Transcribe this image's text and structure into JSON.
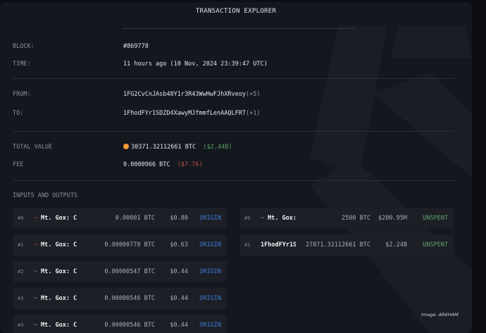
{
  "title": "TRANSACTION EXPLORER",
  "details": {
    "block_label": "BLOCK:",
    "block": "#869778",
    "time_label": "TIME:",
    "time": "11 hours ago  (10 Nov, 2024 23:39:47 UTC)",
    "from_label": "FROM:",
    "from": "1FG2CvCnJAsb48Y1r3R43WwHwFJhXRveoy",
    "from_more": "(+5)",
    "to_label": "TO:",
    "to": "1FhodFYr1SDZD4XawyMJfmmfLenAAQLFRT",
    "to_more": "(+1)",
    "total_label": "TOTAL VALUE",
    "total": "30371.32112661 BTC",
    "total_usd": "($2.44B)",
    "fee_label": "FEE",
    "fee": "0.0000966 BTC",
    "fee_usd": "($7.76)"
  },
  "io_label": "INPUTS AND OUTPUTS",
  "inputs": [
    {
      "idx": "#0",
      "name": "Mt. Gox: C",
      "amount": "0.00001 BTC",
      "usd": "$0.80",
      "status": "ORIGIN"
    },
    {
      "idx": "#1",
      "name": "Mt. Gox: C",
      "amount": "0.00000778 BTC",
      "usd": "$0.63",
      "status": "ORIGIN"
    },
    {
      "idx": "#2",
      "name": "Mt. Gox: C",
      "amount": "0.00000547 BTC",
      "usd": "$0.44",
      "status": "ORIGIN"
    },
    {
      "idx": "#3",
      "name": "Mt. Gox: C",
      "amount": "0.00000546 BTC",
      "usd": "$0.44",
      "status": "ORIGIN"
    },
    {
      "idx": "#4",
      "name": "Mt. Gox: C",
      "amount": "0.00000546 BTC",
      "usd": "$0.44",
      "status": "ORIGIN"
    }
  ],
  "outputs": [
    {
      "idx": "#0",
      "name": "Mt. Gox:",
      "amount": "2500 BTC",
      "usd": "$200.95M",
      "status": "UNSPENT"
    },
    {
      "idx": "#1",
      "name": "1FhodFYr1S",
      "amount": "27871.32112661 BTC",
      "usd": "$2.24B",
      "status": "UNSPENT"
    }
  ],
  "credit": "Image: ARKHAM",
  "colors": {
    "origin": "#3d7ad6",
    "unspent": "#5fa36a",
    "usd_positive": "#5fa36a",
    "usd_negative": "#c0504d",
    "coin": "#f29b38"
  }
}
